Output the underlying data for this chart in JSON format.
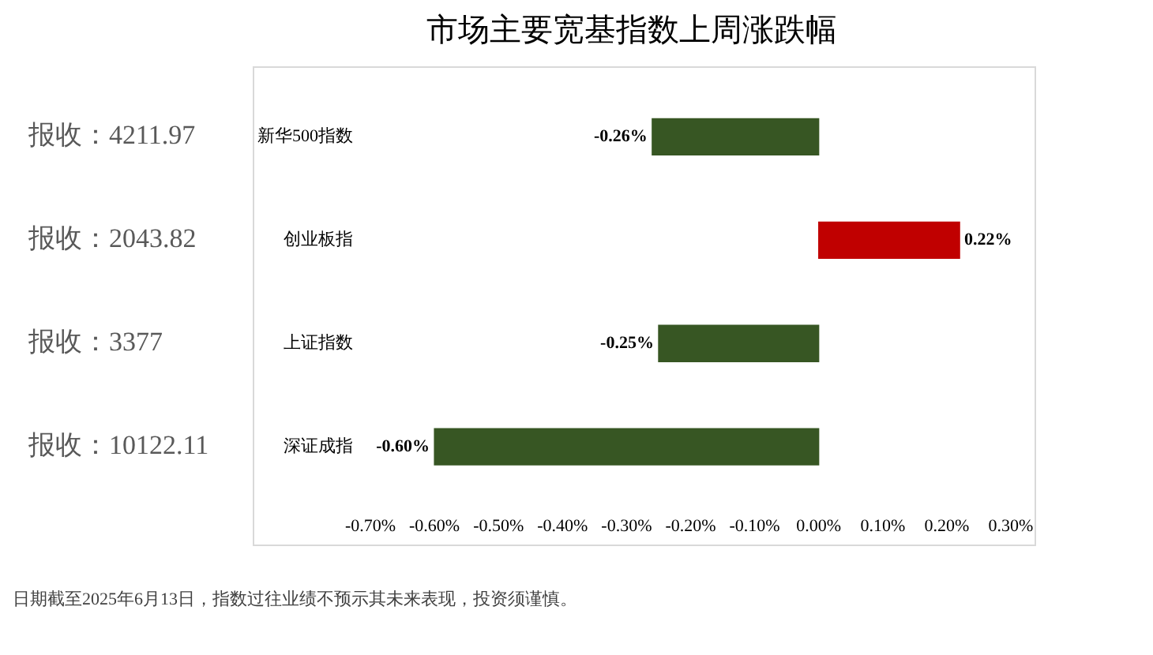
{
  "chart_data": {
    "type": "bar",
    "orientation": "horizontal",
    "title": "市场主要宽基指数上周涨跌幅",
    "categories": [
      "新华500指数",
      "创业板指",
      "上证指数",
      "深证成指"
    ],
    "values": [
      -0.26,
      0.22,
      -0.25,
      -0.6
    ],
    "colors": [
      "#375623",
      "#c00000",
      "#375623",
      "#375623"
    ],
    "value_labels": [
      "-0.26%",
      "0.22%",
      "-0.25%",
      "-0.60%"
    ],
    "xlim": [
      -0.7,
      0.3
    ],
    "xticks": [
      {
        "value": -0.7,
        "label": "-0.70%"
      },
      {
        "value": -0.6,
        "label": "-0.60%"
      },
      {
        "value": -0.5,
        "label": "-0.50%"
      },
      {
        "value": -0.4,
        "label": "-0.40%"
      },
      {
        "value": -0.3,
        "label": "-0.30%"
      },
      {
        "value": -0.2,
        "label": "-0.20%"
      },
      {
        "value": -0.1,
        "label": "-0.10%"
      },
      {
        "value": 0,
        "label": "0.00%"
      },
      {
        "value": 0.1,
        "label": "0.10%"
      },
      {
        "value": 0.2,
        "label": "0.20%"
      },
      {
        "value": 0.3,
        "label": "0.30%"
      }
    ],
    "annotations": [
      "报收：4211.97",
      "报收：2043.82",
      "报收：3377",
      "报收：10122.11",
      "日期截至2025年6月13日，指数过往业绩不预示其未来表现，投资须谨慎。"
    ]
  }
}
